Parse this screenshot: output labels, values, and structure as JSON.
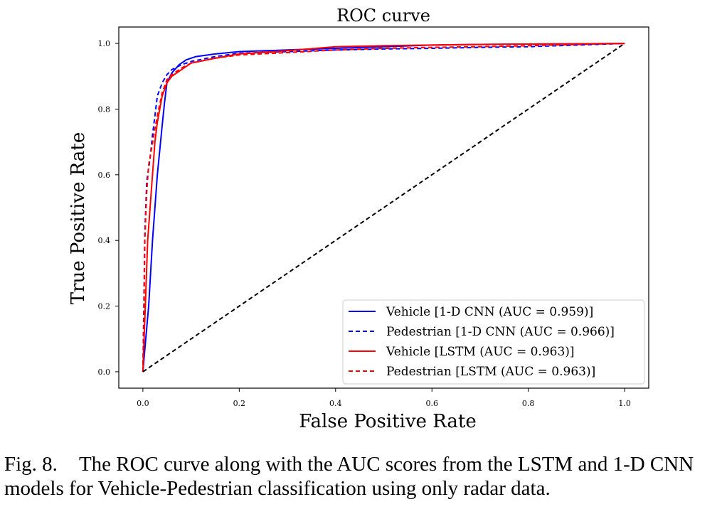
{
  "chart_data": {
    "type": "line",
    "title": "ROC curve",
    "xlabel": "False Positive Rate",
    "ylabel": "True Positive Rate",
    "xlim": [
      -0.05,
      1.05
    ],
    "ylim": [
      -0.05,
      1.05
    ],
    "xticks": [
      "0.0",
      "0.2",
      "0.4",
      "0.6",
      "0.8",
      "1.0"
    ],
    "yticks": [
      "0.0",
      "0.2",
      "0.4",
      "0.6",
      "0.8",
      "1.0"
    ],
    "grid": false,
    "legend_position": "lower-right",
    "series": [
      {
        "name": "Vehicle [1-D CNN (AUC = 0.959)]",
        "color": "#0000ff",
        "style": "solid",
        "x": [
          0.0,
          0.003,
          0.006,
          0.012,
          0.02,
          0.03,
          0.04,
          0.045,
          0.05,
          0.06,
          0.075,
          0.09,
          0.11,
          0.15,
          0.2,
          0.3,
          0.4,
          0.5,
          0.6,
          0.7,
          0.8,
          0.9,
          1.0
        ],
        "y": [
          0.0,
          0.05,
          0.1,
          0.2,
          0.4,
          0.6,
          0.75,
          0.82,
          0.88,
          0.91,
          0.935,
          0.95,
          0.96,
          0.968,
          0.975,
          0.98,
          0.985,
          0.99,
          0.995,
          0.997,
          0.998,
          0.999,
          1.0
        ]
      },
      {
        "name": "Pedestrian [1-D CNN (AUC = 0.966)]",
        "color": "#0000ff",
        "style": "dashed",
        "x": [
          0.0,
          0.002,
          0.004,
          0.008,
          0.015,
          0.02,
          0.025,
          0.03,
          0.04,
          0.05,
          0.06,
          0.08,
          0.1,
          0.15,
          0.2,
          0.3,
          0.4,
          0.5,
          0.6,
          0.7,
          0.8,
          0.9,
          1.0
        ],
        "y": [
          0.0,
          0.2,
          0.42,
          0.58,
          0.65,
          0.72,
          0.78,
          0.84,
          0.88,
          0.905,
          0.92,
          0.935,
          0.945,
          0.96,
          0.97,
          0.975,
          0.98,
          0.983,
          0.985,
          0.988,
          0.99,
          0.995,
          1.0
        ]
      },
      {
        "name": "Vehicle [LSTM (AUC = 0.963)]",
        "color": "#ff0000",
        "style": "solid",
        "x": [
          0.0,
          0.002,
          0.005,
          0.01,
          0.015,
          0.02,
          0.025,
          0.03,
          0.04,
          0.05,
          0.06,
          0.08,
          0.1,
          0.15,
          0.2,
          0.3,
          0.4,
          0.5,
          0.6,
          0.7,
          0.8,
          0.9,
          1.0
        ],
        "y": [
          0.0,
          0.08,
          0.2,
          0.4,
          0.5,
          0.6,
          0.7,
          0.76,
          0.84,
          0.88,
          0.9,
          0.92,
          0.94,
          0.955,
          0.968,
          0.978,
          0.99,
          0.993,
          0.995,
          0.997,
          0.998,
          0.999,
          1.0
        ]
      },
      {
        "name": "Pedestrian [LSTM (AUC = 0.963)]",
        "color": "#ff0000",
        "style": "dashed",
        "x": [
          0.0,
          0.002,
          0.004,
          0.008,
          0.012,
          0.018,
          0.025,
          0.03,
          0.04,
          0.05,
          0.06,
          0.08,
          0.1,
          0.15,
          0.2,
          0.3,
          0.4,
          0.5,
          0.6,
          0.7,
          0.8,
          0.9,
          1.0
        ],
        "y": [
          0.0,
          0.15,
          0.4,
          0.55,
          0.63,
          0.68,
          0.74,
          0.78,
          0.85,
          0.89,
          0.905,
          0.925,
          0.94,
          0.955,
          0.965,
          0.972,
          0.98,
          0.985,
          0.988,
          0.99,
          0.993,
          0.997,
          1.0
        ]
      },
      {
        "color": "#000000",
        "style": "dashed",
        "x": [
          0.0,
          1.0
        ],
        "y": [
          0.0,
          1.0
        ]
      }
    ]
  },
  "caption": {
    "label": "Fig. 8.",
    "text": "The ROC curve along with the AUC scores from the LSTM and 1-D CNN models for Vehicle-Pedestrian classification using only radar data."
  }
}
